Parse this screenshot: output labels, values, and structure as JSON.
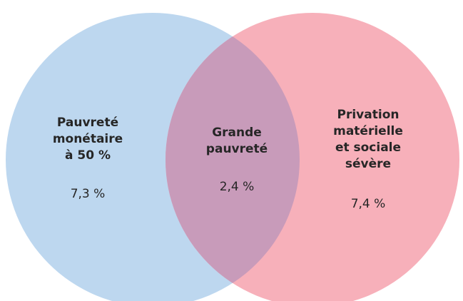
{
  "sets": [
    {
      "label_lines": [
        "Pauvreté",
        "monétaire",
        "à 50 %"
      ],
      "value": "7,3 %"
    },
    {
      "label_lines": [
        "Privation",
        "matérielle",
        "et sociale",
        "sévère"
      ],
      "value": "7,4 %"
    }
  ],
  "intersection": {
    "label_lines": [
      "Grande",
      "pauvreté"
    ],
    "value": "2,4 %"
  }
}
